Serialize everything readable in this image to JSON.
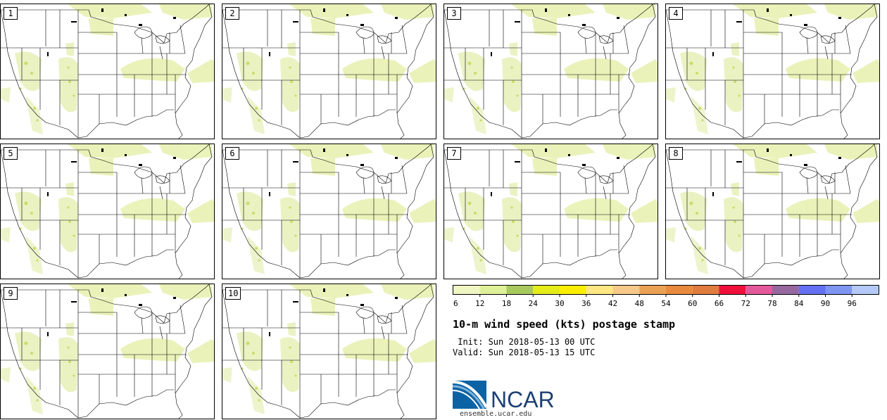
{
  "panels": [
    {
      "id": "1"
    },
    {
      "id": "2"
    },
    {
      "id": "3"
    },
    {
      "id": "4"
    },
    {
      "id": "5"
    },
    {
      "id": "6"
    },
    {
      "id": "7"
    },
    {
      "id": "8"
    },
    {
      "id": "9"
    },
    {
      "id": "10"
    }
  ],
  "colorbar": {
    "ticks": [
      "6",
      "12",
      "18",
      "24",
      "30",
      "36",
      "42",
      "48",
      "54",
      "60",
      "66",
      "72",
      "78",
      "84",
      "90",
      "96"
    ],
    "colors": [
      "#eff6c2",
      "#dff09a",
      "#a7c95e",
      "#e4ec1a",
      "#fbee00",
      "#fce783",
      "#f6c98a",
      "#eba257",
      "#e88b3e",
      "#e07c3e",
      "#f0103c",
      "#e4589c",
      "#97689f",
      "#6370f1",
      "#7f95f2",
      "#b5c9f8"
    ]
  },
  "title": "10-m wind speed (kts) postage stamp",
  "init": " Init: Sun 2018-05-13 00 UTC",
  "valid": "Valid: Sun 2018-05-13 15 UTC",
  "logo": {
    "text": "NCAR",
    "url": "ensemble.ucar.edu"
  }
}
